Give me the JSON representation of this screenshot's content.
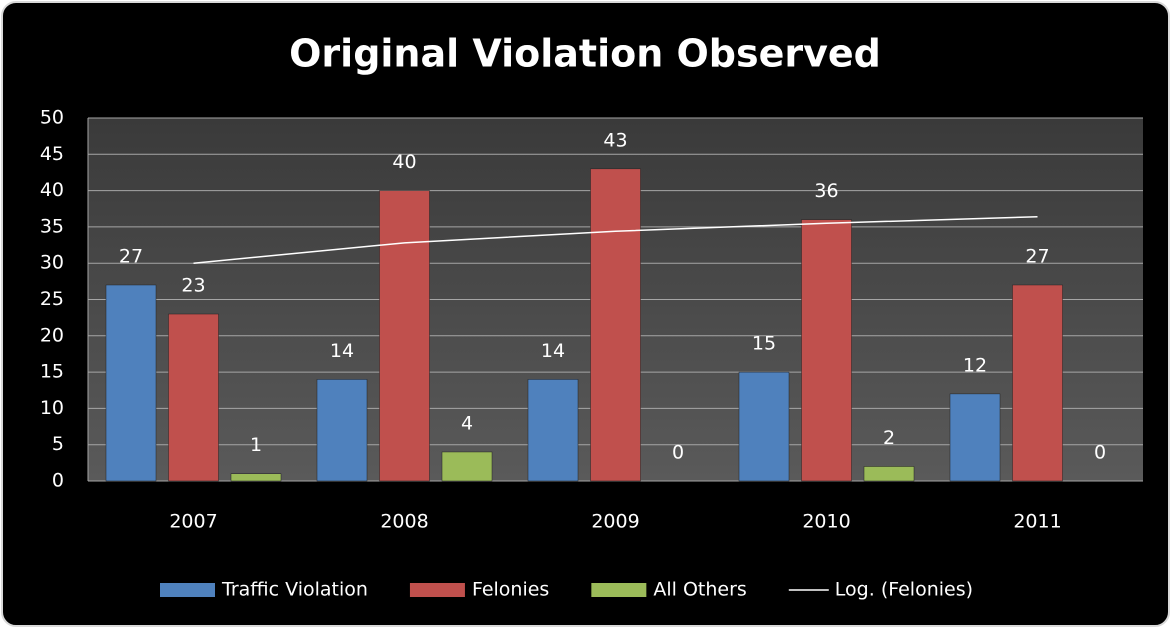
{
  "chart_data": {
    "type": "bar",
    "title": "Original Violation Observed",
    "categories": [
      "2007",
      "2008",
      "2009",
      "2010",
      "2011"
    ],
    "series": [
      {
        "name": "Traffic Violation",
        "color": "#4f81bd",
        "values": [
          27,
          14,
          14,
          15,
          12
        ]
      },
      {
        "name": "Felonies",
        "color": "#c0504d",
        "values": [
          23,
          40,
          43,
          36,
          27
        ]
      },
      {
        "name": "All Others",
        "color": "#9bbb59",
        "values": [
          1,
          4,
          0,
          2,
          0
        ]
      },
      {
        "name": "Log. (Felonies)",
        "type": "line",
        "color": "#ffffff",
        "values": [
          30,
          32.8,
          34.4,
          35.5,
          36.4
        ]
      }
    ],
    "ylim": [
      0,
      50
    ],
    "yticks": [
      0,
      5,
      10,
      15,
      20,
      25,
      30,
      35,
      40,
      45,
      50
    ],
    "grid": true,
    "legend": "bottom"
  }
}
